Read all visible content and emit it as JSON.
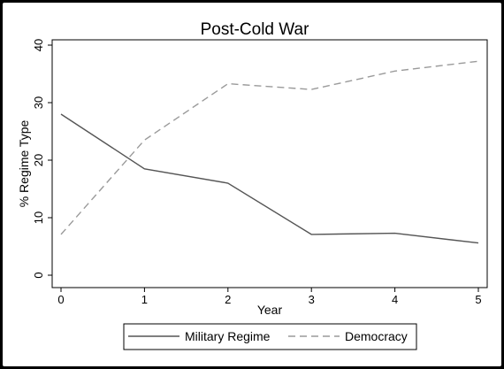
{
  "chart_data": {
    "type": "line",
    "title": "Post-Cold War",
    "xlabel": "Year",
    "ylabel": "% Regime Type",
    "x": [
      0,
      1,
      2,
      3,
      4,
      5
    ],
    "xlim": [
      0,
      5
    ],
    "ylim": [
      0,
      40
    ],
    "xticks": [
      "0",
      "1",
      "2",
      "3",
      "4",
      "5"
    ],
    "yticks": [
      "0",
      "10",
      "20",
      "30",
      "40"
    ],
    "grid": false,
    "legend_position": "bottom",
    "series": [
      {
        "name": "Military Regime",
        "values": [
          28.0,
          18.5,
          16.0,
          7.1,
          7.3,
          5.6
        ],
        "color": "#555555",
        "style": "solid"
      },
      {
        "name": "Democracy",
        "values": [
          7.1,
          23.5,
          33.3,
          32.3,
          35.5,
          37.2
        ],
        "color": "#9a9a9a",
        "style": "dashed"
      }
    ]
  }
}
